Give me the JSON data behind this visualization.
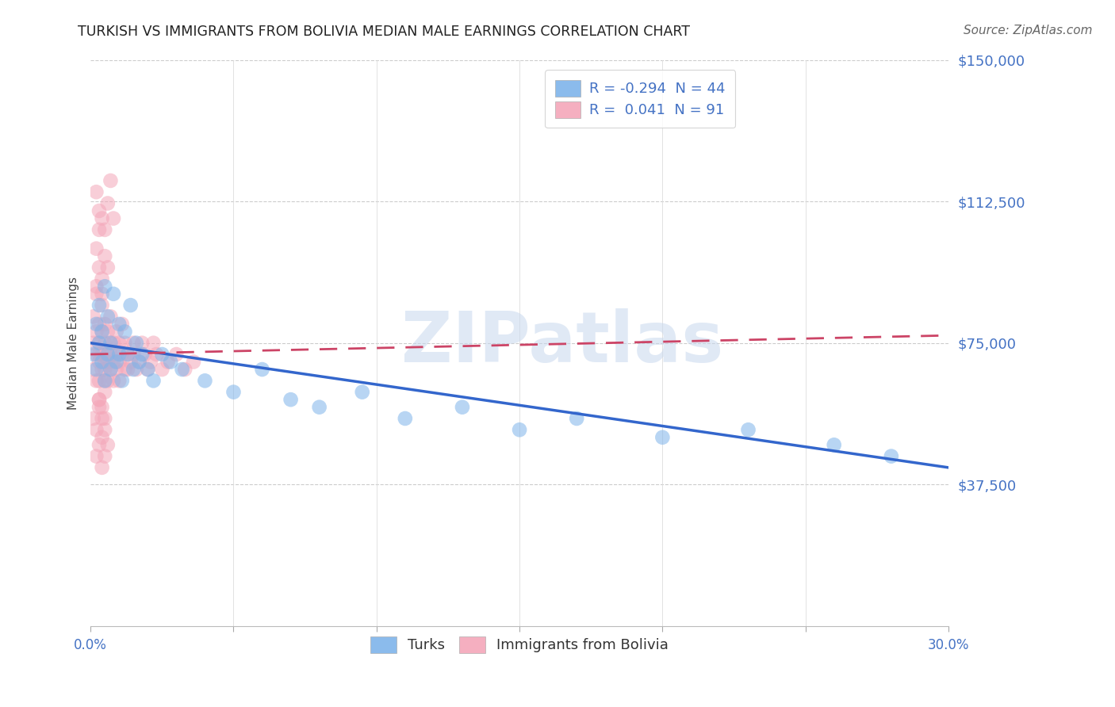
{
  "title": "TURKISH VS IMMIGRANTS FROM BOLIVIA MEDIAN MALE EARNINGS CORRELATION CHART",
  "source": "Source: ZipAtlas.com",
  "ylabel": "Median Male Earnings",
  "xlim": [
    0.0,
    0.3
  ],
  "ylim": [
    0,
    150000
  ],
  "yticks": [
    0,
    37500,
    75000,
    112500,
    150000
  ],
  "ytick_labels": [
    "",
    "$37,500",
    "$75,000",
    "$112,500",
    "$150,000"
  ],
  "xticks": [
    0.0,
    0.05,
    0.1,
    0.15,
    0.2,
    0.25,
    0.3
  ],
  "xtick_labels": [
    "0.0%",
    "",
    "",
    "",
    "",
    "",
    "30.0%"
  ],
  "turks_color": "#7EB4EA",
  "bolivia_color": "#F4A7B9",
  "turks_line_color": "#3366CC",
  "bolivia_line_color": "#CC4466",
  "watermark_text": "ZIPatlas",
  "turks_N": 44,
  "bolivia_N": 91,
  "turks_R": -0.294,
  "bolivia_R": 0.041,
  "turks_x": [
    0.001,
    0.002,
    0.002,
    0.003,
    0.003,
    0.004,
    0.004,
    0.005,
    0.005,
    0.006,
    0.006,
    0.007,
    0.007,
    0.008,
    0.009,
    0.01,
    0.01,
    0.011,
    0.012,
    0.013,
    0.014,
    0.015,
    0.016,
    0.017,
    0.018,
    0.02,
    0.022,
    0.025,
    0.028,
    0.032,
    0.04,
    0.05,
    0.06,
    0.07,
    0.08,
    0.095,
    0.11,
    0.13,
    0.15,
    0.17,
    0.2,
    0.23,
    0.26,
    0.28
  ],
  "turks_y": [
    72000,
    68000,
    80000,
    75000,
    85000,
    70000,
    78000,
    65000,
    90000,
    72000,
    82000,
    68000,
    75000,
    88000,
    70000,
    72000,
    80000,
    65000,
    78000,
    72000,
    85000,
    68000,
    75000,
    70000,
    72000,
    68000,
    65000,
    72000,
    70000,
    68000,
    65000,
    62000,
    68000,
    60000,
    58000,
    62000,
    55000,
    58000,
    52000,
    55000,
    50000,
    52000,
    48000,
    45000
  ],
  "bolivia_x": [
    0.001,
    0.001,
    0.001,
    0.002,
    0.002,
    0.002,
    0.002,
    0.003,
    0.003,
    0.003,
    0.003,
    0.003,
    0.004,
    0.004,
    0.004,
    0.004,
    0.005,
    0.005,
    0.005,
    0.005,
    0.005,
    0.006,
    0.006,
    0.006,
    0.006,
    0.007,
    0.007,
    0.007,
    0.007,
    0.008,
    0.008,
    0.008,
    0.009,
    0.009,
    0.009,
    0.01,
    0.01,
    0.01,
    0.011,
    0.011,
    0.012,
    0.012,
    0.013,
    0.013,
    0.014,
    0.015,
    0.015,
    0.016,
    0.017,
    0.018,
    0.019,
    0.02,
    0.021,
    0.022,
    0.023,
    0.025,
    0.027,
    0.03,
    0.033,
    0.036,
    0.002,
    0.003,
    0.004,
    0.005,
    0.006,
    0.007,
    0.008,
    0.003,
    0.004,
    0.005,
    0.001,
    0.002,
    0.003,
    0.004,
    0.005,
    0.006,
    0.002,
    0.003,
    0.004,
    0.005,
    0.002,
    0.003,
    0.004,
    0.002,
    0.003,
    0.004,
    0.005,
    0.006,
    0.003,
    0.004,
    0.005
  ],
  "bolivia_y": [
    75000,
    68000,
    82000,
    72000,
    65000,
    78000,
    88000,
    70000,
    75000,
    80000,
    65000,
    72000,
    68000,
    78000,
    85000,
    72000,
    70000,
    65000,
    75000,
    80000,
    68000,
    72000,
    78000,
    65000,
    70000,
    75000,
    68000,
    82000,
    72000,
    70000,
    65000,
    75000,
    72000,
    68000,
    78000,
    70000,
    75000,
    65000,
    72000,
    80000,
    68000,
    75000,
    72000,
    68000,
    70000,
    75000,
    72000,
    68000,
    70000,
    75000,
    72000,
    68000,
    70000,
    75000,
    72000,
    68000,
    70000,
    72000,
    68000,
    70000,
    115000,
    110000,
    108000,
    105000,
    112000,
    118000,
    108000,
    60000,
    58000,
    62000,
    55000,
    52000,
    58000,
    50000,
    55000,
    48000,
    45000,
    48000,
    42000,
    45000,
    90000,
    95000,
    88000,
    100000,
    105000,
    92000,
    98000,
    95000,
    60000,
    55000,
    52000
  ]
}
